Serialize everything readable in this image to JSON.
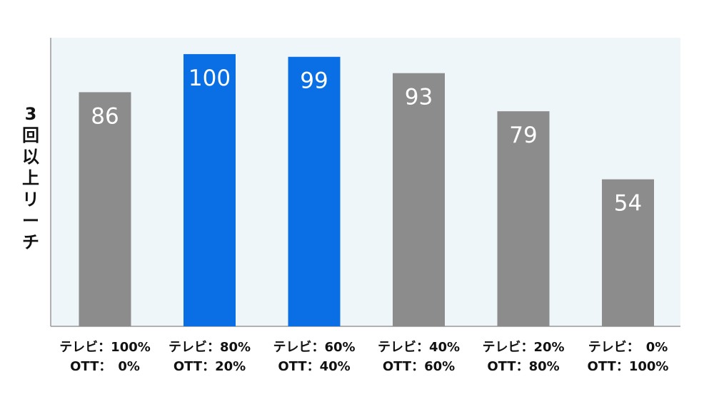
{
  "chart_data": {
    "type": "bar",
    "title": "",
    "xlabel": "",
    "ylabel": "3回以上リーチ",
    "ylim": [
      0,
      106
    ],
    "grid": false,
    "categories": [
      [
        "テレビ：100%",
        "OTT：　0%"
      ],
      [
        "テレビ：80%",
        "OTT：20%"
      ],
      [
        "テレビ：60%",
        "OTT：40%"
      ],
      [
        "テレビ：40%",
        "OTT：60%"
      ],
      [
        "テレビ：20%",
        "OTT：80%"
      ],
      [
        "テレビ：　0%",
        "OTT：100%"
      ]
    ],
    "values": [
      86,
      100,
      99,
      93,
      79,
      54
    ],
    "highlighted": [
      false,
      true,
      true,
      false,
      false,
      false
    ]
  },
  "colors": {
    "plot_background": "#eef6fa",
    "axis": "#999999",
    "bar_default": "#8c8c8c",
    "bar_highlight": "#0a6fe4"
  }
}
